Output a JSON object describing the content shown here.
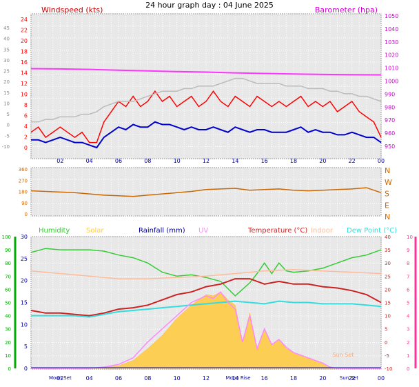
{
  "title": "24 hour graph day : 04 June 2025",
  "x_tick_labels": [
    "02",
    "04",
    "06",
    "08",
    "10",
    "12",
    "14",
    "16",
    "18",
    "20",
    "22",
    "00"
  ],
  "colors": {
    "wind": "#ff0000",
    "wind_avg": "#0000cc",
    "gust_gray": "#bbbbbb",
    "barometer": "#ff33ff",
    "direction": "#cc6600",
    "humidity": "#33cc33",
    "solar": "#ffcc44",
    "uv": "#ff88ff",
    "temperature": "#cc2222",
    "indoor": "#ffbb99",
    "dewpoint": "#33dddd",
    "rainfall": "#000099",
    "axis_blue": "#000099",
    "left_axis": "#ff0000",
    "right_axis": "#cc00cc",
    "green_axis": "#00aa00",
    "pink_axis": "#ff3399"
  },
  "chart_data": [
    {
      "type": "line",
      "panel": "wind",
      "left_label": "Windspeed (kts)",
      "right_label": "Barometer (hpa)",
      "left_ticks": [
        "24",
        "22",
        "20",
        "18",
        "16",
        "14",
        "12",
        "10",
        "8",
        "6",
        "4",
        "2",
        "0"
      ],
      "outer_left_ticks": [
        "45",
        "40",
        "35",
        "30",
        "25",
        "20",
        "15",
        "10",
        "5",
        "0",
        "-5",
        "-10"
      ],
      "right_ticks": [
        "1050",
        "1040",
        "1030",
        "1020",
        "1010",
        "1000",
        "990",
        "980",
        "970",
        "960",
        "950"
      ],
      "ylim": [
        0,
        25
      ],
      "y2lim": [
        946,
        1050
      ],
      "series": [
        {
          "key": "wind",
          "x": [
            0,
            0.5,
            1,
            1.5,
            2,
            2.5,
            3,
            3.5,
            4,
            4.5,
            5,
            5.5,
            6,
            6.5,
            7,
            7.5,
            8,
            8.5,
            9,
            9.5,
            10,
            10.5,
            11,
            11.5,
            12,
            12.5,
            13,
            13.5,
            14,
            14.5,
            15,
            15.5,
            16,
            16.5,
            17,
            17.5,
            18,
            18.5,
            19,
            19.5,
            20,
            20.5,
            21,
            21.5,
            22,
            22.5,
            23,
            23.5,
            24
          ],
          "y": [
            3,
            4,
            2,
            3,
            4,
            3,
            2,
            3,
            1,
            1,
            5,
            7,
            9,
            8,
            10,
            8,
            9,
            11,
            9,
            10,
            8,
            9,
            10,
            8,
            9,
            11,
            9,
            8,
            10,
            9,
            8,
            10,
            9,
            8,
            9,
            8,
            9,
            10,
            8,
            9,
            8,
            9,
            7,
            8,
            9,
            7,
            6,
            5,
            2
          ]
        },
        {
          "key": "wind_avg",
          "x": [
            0,
            0.5,
            1,
            1.5,
            2,
            2.5,
            3,
            3.5,
            4,
            4.5,
            5,
            5.5,
            6,
            6.5,
            7,
            7.5,
            8,
            8.5,
            9,
            9.5,
            10,
            10.5,
            11,
            11.5,
            12,
            12.5,
            13,
            13.5,
            14,
            14.5,
            15,
            15.5,
            16,
            16.5,
            17,
            17.5,
            18,
            18.5,
            19,
            19.5,
            20,
            20.5,
            21,
            21.5,
            22,
            22.5,
            23,
            23.5,
            24
          ],
          "y": [
            1.5,
            1.5,
            1,
            1.5,
            2,
            1.5,
            1,
            1,
            0.5,
            0,
            2,
            3,
            4,
            3.5,
            4.5,
            4,
            4,
            5,
            4.5,
            4.5,
            4,
            3.5,
            4,
            3.5,
            3.5,
            4,
            3.5,
            3,
            4,
            3.5,
            3,
            3.5,
            3.5,
            3,
            3,
            3,
            3.5,
            4,
            3,
            3.5,
            3,
            3,
            2.5,
            2.5,
            3,
            2.5,
            2,
            2,
            1
          ]
        },
        {
          "key": "gust_gray",
          "x": [
            0,
            0.5,
            1,
            1.5,
            2,
            2.5,
            3,
            3.5,
            4,
            4.5,
            5,
            5.5,
            6,
            6.5,
            7,
            7.5,
            8,
            8.5,
            9,
            9.5,
            10,
            10.5,
            11,
            11.5,
            12,
            12.5,
            13,
            13.5,
            14,
            14.5,
            15,
            15.5,
            16,
            16.5,
            17,
            17.5,
            18,
            18.5,
            19,
            19.5,
            20,
            20.5,
            21,
            21.5,
            22,
            22.5,
            23,
            23.5,
            24
          ],
          "y": [
            5,
            5,
            5.5,
            5.5,
            6,
            6,
            6,
            6.5,
            6.5,
            7,
            8,
            8.5,
            9,
            9,
            9,
            9.5,
            10,
            10.5,
            11,
            11,
            11,
            11.5,
            11.5,
            12,
            12,
            12,
            12.5,
            13,
            13.5,
            13.5,
            13,
            12.5,
            12.5,
            12.5,
            12.5,
            12,
            12,
            12,
            11.5,
            11.5,
            11.5,
            11,
            11,
            10.5,
            10.5,
            10,
            10,
            9.5,
            9
          ]
        },
        {
          "key": "barometer",
          "x": [
            0,
            2,
            4,
            6,
            8,
            10,
            12,
            14,
            16,
            18,
            20,
            22,
            24
          ],
          "y": [
            1010,
            1009.8,
            1009.4,
            1008.8,
            1008.2,
            1007.6,
            1007.2,
            1006.6,
            1006.1,
            1005.7,
            1005.3,
            1005.1,
            1005
          ]
        }
      ]
    },
    {
      "type": "line",
      "panel": "direction",
      "ticks": [
        "360",
        "270",
        "180",
        "90",
        "0"
      ],
      "compass": [
        "N",
        "W",
        "S",
        "E",
        "N"
      ],
      "ylim": [
        0,
        360
      ],
      "series": [
        {
          "key": "direction",
          "x": [
            0,
            1,
            2,
            3,
            4,
            5,
            6,
            7,
            8,
            9,
            10,
            11,
            12,
            13,
            14,
            15,
            16,
            17,
            18,
            19,
            20,
            21,
            22,
            23,
            24
          ],
          "y": [
            185,
            180,
            175,
            170,
            160,
            150,
            145,
            140,
            150,
            160,
            170,
            180,
            195,
            200,
            205,
            190,
            195,
            200,
            190,
            185,
            190,
            195,
            200,
            210,
            170
          ]
        }
      ]
    },
    {
      "type": "line",
      "panel": "temperature",
      "legend": [
        "Humidity",
        "Solar",
        "Rainfall (mm)",
        "UV",
        "Temperature (°C)",
        "Indoor",
        "Dew Point (°C)"
      ],
      "humidity_ticks": [
        "100",
        "90",
        "80",
        "70",
        "60",
        "50",
        "40",
        "30",
        "20",
        "10",
        "0"
      ],
      "rain_ticks": [
        "30",
        "25",
        "20",
        "15",
        "10",
        "5",
        "0"
      ],
      "temp_ticks": [
        "40",
        "35",
        "30",
        "25",
        "20",
        "15",
        "10",
        "5",
        "0",
        "-5",
        "-10"
      ],
      "uv_ticks": [
        "10",
        "9",
        "8",
        "7",
        "6",
        "5",
        "4",
        "3",
        "2",
        "1",
        "0"
      ],
      "events": [
        {
          "label": "Moon Set",
          "x": 2
        },
        {
          "label": "Moon Rise",
          "x": 14.2
        },
        {
          "label": "Sun Set",
          "x": 21.8
        }
      ],
      "sunset_annotation": "Sun Set",
      "ylim_temp": [
        -10,
        40
      ],
      "ylim_humidity": [
        0,
        100
      ],
      "ylim_uv": [
        0,
        10
      ],
      "series": [
        {
          "key": "humidity",
          "x": [
            0,
            1,
            2,
            3,
            4,
            5,
            6,
            7,
            8,
            9,
            10,
            11,
            12,
            13,
            14,
            14.5,
            15,
            15.5,
            16,
            16.5,
            17,
            17.5,
            18,
            19,
            20,
            21,
            22,
            23,
            24
          ],
          "y": [
            88,
            91,
            90,
            90,
            90,
            89,
            86,
            84,
            80,
            73,
            70,
            71,
            69,
            66,
            55,
            60,
            65,
            72,
            80,
            72,
            80,
            74,
            73,
            74,
            76,
            80,
            84,
            86,
            90
          ]
        },
        {
          "key": "temperature",
          "x": [
            0,
            1,
            2,
            3,
            4,
            5,
            6,
            7,
            8,
            9,
            10,
            11,
            12,
            13,
            14,
            15,
            16,
            17,
            18,
            19,
            20,
            21,
            22,
            23,
            24
          ],
          "y": [
            12,
            11,
            11,
            10.5,
            10,
            11,
            12.5,
            13,
            14,
            16,
            18,
            19,
            21,
            22,
            24,
            24,
            22,
            23,
            22,
            22,
            21,
            20.5,
            19.5,
            18,
            15
          ]
        },
        {
          "key": "indoor",
          "x": [
            0,
            2,
            4,
            6,
            8,
            10,
            12,
            14,
            16,
            18,
            20,
            22,
            24
          ],
          "y": [
            27,
            26,
            25,
            24,
            24,
            24.5,
            25,
            26,
            27,
            27.5,
            27,
            26.5,
            26
          ]
        },
        {
          "key": "dewpoint",
          "x": [
            0,
            1,
            2,
            3,
            4,
            5,
            6,
            7,
            8,
            9,
            10,
            11,
            12,
            13,
            14,
            15,
            16,
            17,
            18,
            19,
            20,
            21,
            22,
            23,
            24
          ],
          "y": [
            10,
            10,
            10,
            10,
            9.5,
            10.5,
            11.5,
            12,
            12.5,
            13,
            13.5,
            14,
            14.5,
            15,
            15.5,
            15,
            14.5,
            15.5,
            15,
            15,
            14.5,
            14.5,
            14.5,
            14,
            13.5
          ]
        },
        {
          "key": "solar",
          "x": [
            0,
            4,
            5,
            6,
            7,
            8,
            9,
            10,
            11,
            12,
            12.5,
            13,
            13.5,
            14,
            14.5,
            15,
            15.5,
            16,
            16.5,
            17,
            17.5,
            18,
            19,
            20,
            20.5,
            21,
            24
          ],
          "y": [
            0,
            0,
            1,
            2,
            6,
            15,
            25,
            38,
            48,
            56,
            55,
            58,
            52,
            48,
            20,
            42,
            15,
            30,
            18,
            22,
            15,
            12,
            8,
            4,
            1,
            0,
            0
          ]
        },
        {
          "key": "uv",
          "x": [
            0,
            4,
            5,
            6,
            7,
            8,
            9,
            10,
            11,
            12,
            12.5,
            13,
            13.5,
            14,
            14.5,
            15,
            15.5,
            16,
            16.5,
            17,
            17.5,
            18,
            19,
            20,
            20.5,
            21,
            24
          ],
          "y": [
            0,
            0,
            0.1,
            0.3,
            0.8,
            2,
            3,
            4,
            5,
            5.5,
            5.3,
            5.8,
            5,
            4.5,
            2,
            4,
            1.5,
            3,
            1.8,
            2.2,
            1.6,
            1.2,
            0.8,
            0.4,
            0.1,
            0,
            0
          ]
        },
        {
          "key": "rainfall",
          "x": [
            0,
            24
          ],
          "y": [
            0,
            0
          ]
        }
      ]
    }
  ]
}
